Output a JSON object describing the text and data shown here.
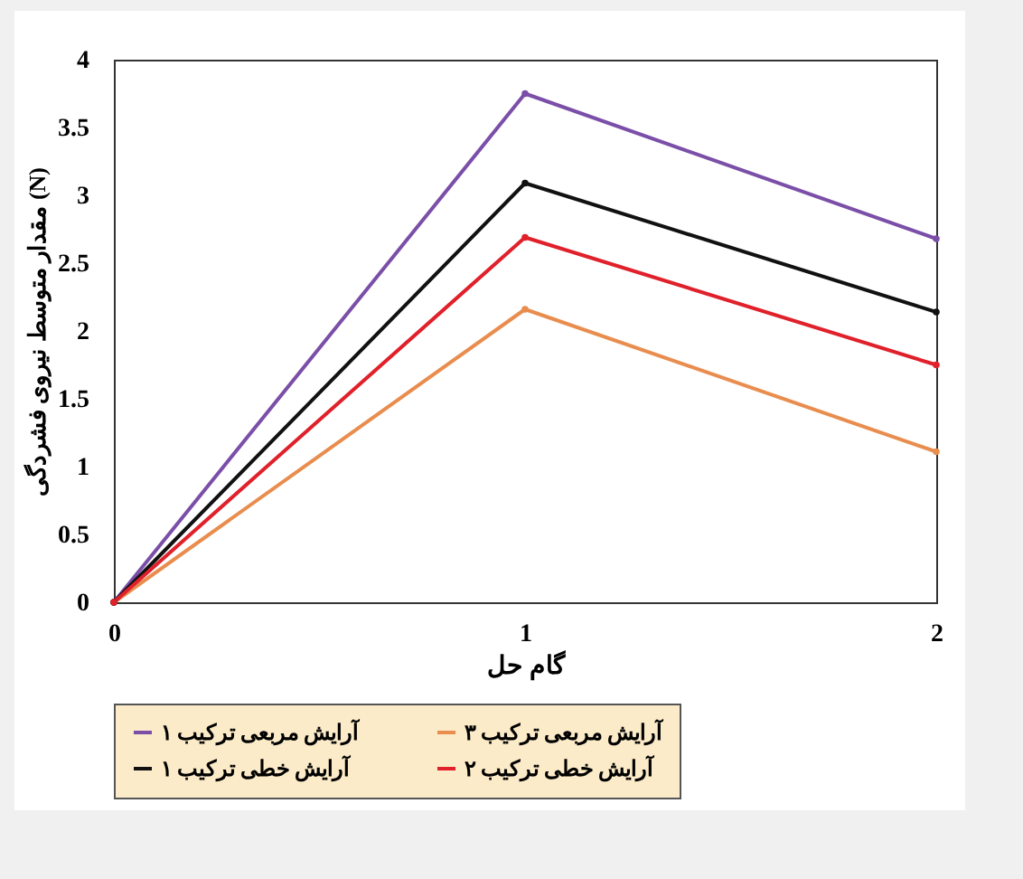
{
  "chart_data": {
    "type": "line",
    "xlabel": "گام حل",
    "ylabel": "مقدار متوسط نیروی فشردگی (N)",
    "x": [
      0,
      1,
      2
    ],
    "xlim": [
      0,
      2
    ],
    "xticks": [
      0,
      1,
      2
    ],
    "ylim": [
      0,
      4
    ],
    "yticks": [
      0,
      0.5,
      1,
      1.5,
      2,
      2.5,
      3,
      3.5,
      4
    ],
    "series": [
      {
        "name": "آرایش مربعی ترکیب ۱",
        "color": "#7b4fa8",
        "values": [
          0,
          3.75,
          2.68
        ]
      },
      {
        "name": "آرایش مربعی ترکیب ۳",
        "color": "#e98d4f",
        "values": [
          0,
          2.16,
          1.11
        ]
      },
      {
        "name": "آرایش خطی ترکیب ۱",
        "color": "#111111",
        "values": [
          0,
          3.09,
          2.14
        ]
      },
      {
        "name": "آرایش خطی ترکیب ۲",
        "color": "#e0202a",
        "values": [
          0,
          2.69,
          1.75
        ]
      }
    ],
    "grid": false,
    "legend": "bottom",
    "marker": "circle",
    "line_style": "solid"
  }
}
